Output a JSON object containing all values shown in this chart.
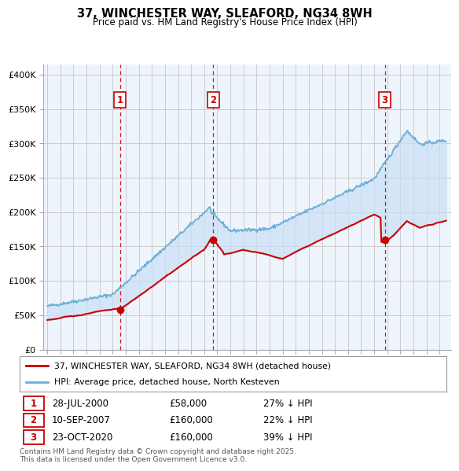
{
  "title_line1": "37, WINCHESTER WAY, SLEAFORD, NG34 8WH",
  "title_line2": "Price paid vs. HM Land Registry's House Price Index (HPI)",
  "ylabel_ticks": [
    "£0",
    "£50K",
    "£100K",
    "£150K",
    "£200K",
    "£250K",
    "£300K",
    "£350K",
    "£400K"
  ],
  "ytick_values": [
    0,
    50000,
    100000,
    150000,
    200000,
    250000,
    300000,
    350000,
    400000
  ],
  "ylim": [
    0,
    415000
  ],
  "xlim_start": 1994.7,
  "xlim_end": 2025.9,
  "legend_line1": "37, WINCHESTER WAY, SLEAFORD, NG34 8WH (detached house)",
  "legend_line2": "HPI: Average price, detached house, North Kesteven",
  "sale_color": "#cc0000",
  "hpi_color": "#6baed6",
  "fill_color": "#ddeeff",
  "vline_color": "#cc0000",
  "transactions": [
    {
      "label": "1",
      "date": "28-JUL-2000",
      "price": "£58,000",
      "pct": "27% ↓ HPI",
      "year": 2000.57
    },
    {
      "label": "2",
      "date": "10-SEP-2007",
      "price": "£160,000",
      "pct": "22% ↓ HPI",
      "year": 2007.69
    },
    {
      "label": "3",
      "date": "23-OCT-2020",
      "price": "£160,000",
      "pct": "39% ↓ HPI",
      "year": 2020.81
    }
  ],
  "footnote": "Contains HM Land Registry data © Crown copyright and database right 2025.\nThis data is licensed under the Open Government Licence v3.0."
}
